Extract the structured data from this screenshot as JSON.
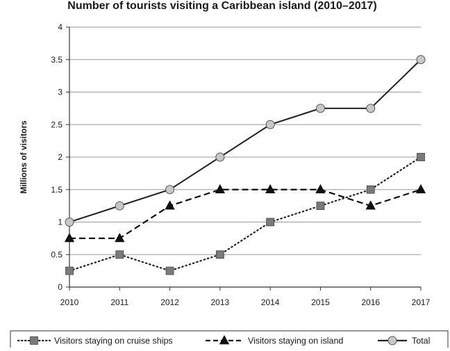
{
  "chart_data": {
    "type": "line",
    "title": "Number of tourists visiting a Caribbean island (2010–2017)",
    "xlabel": "",
    "ylabel": "Millions of visitors",
    "x": [
      "2010",
      "2011",
      "2012",
      "2013",
      "2014",
      "2015",
      "2016",
      "2017"
    ],
    "ylim": [
      0,
      4
    ],
    "yticks": [
      "0",
      "0.5",
      "1",
      "1.5",
      "2",
      "2.5",
      "3",
      "3.5",
      "4"
    ],
    "grid": "horizontal",
    "legend_position": "bottom",
    "series": [
      {
        "name": "Visitors staying on cruise ships",
        "values": [
          0.25,
          0.5,
          0.25,
          0.5,
          1,
          1.25,
          1.5,
          2
        ],
        "line_style": "dotted",
        "marker": "square",
        "color": "#222222",
        "marker_color": "#7a7a7a"
      },
      {
        "name": "Visitors staying on island",
        "values": [
          0.75,
          0.75,
          1.25,
          1.5,
          1.5,
          1.5,
          1.25,
          1.5
        ],
        "line_style": "dashed",
        "marker": "triangle",
        "color": "#111111",
        "marker_color": "#111111"
      },
      {
        "name": "Total",
        "values": [
          1,
          1.25,
          1.5,
          2,
          2.5,
          2.75,
          2.75,
          3.5
        ],
        "line_style": "solid",
        "marker": "circle",
        "color": "#222222",
        "marker_color": "#c8c8c8"
      }
    ]
  }
}
